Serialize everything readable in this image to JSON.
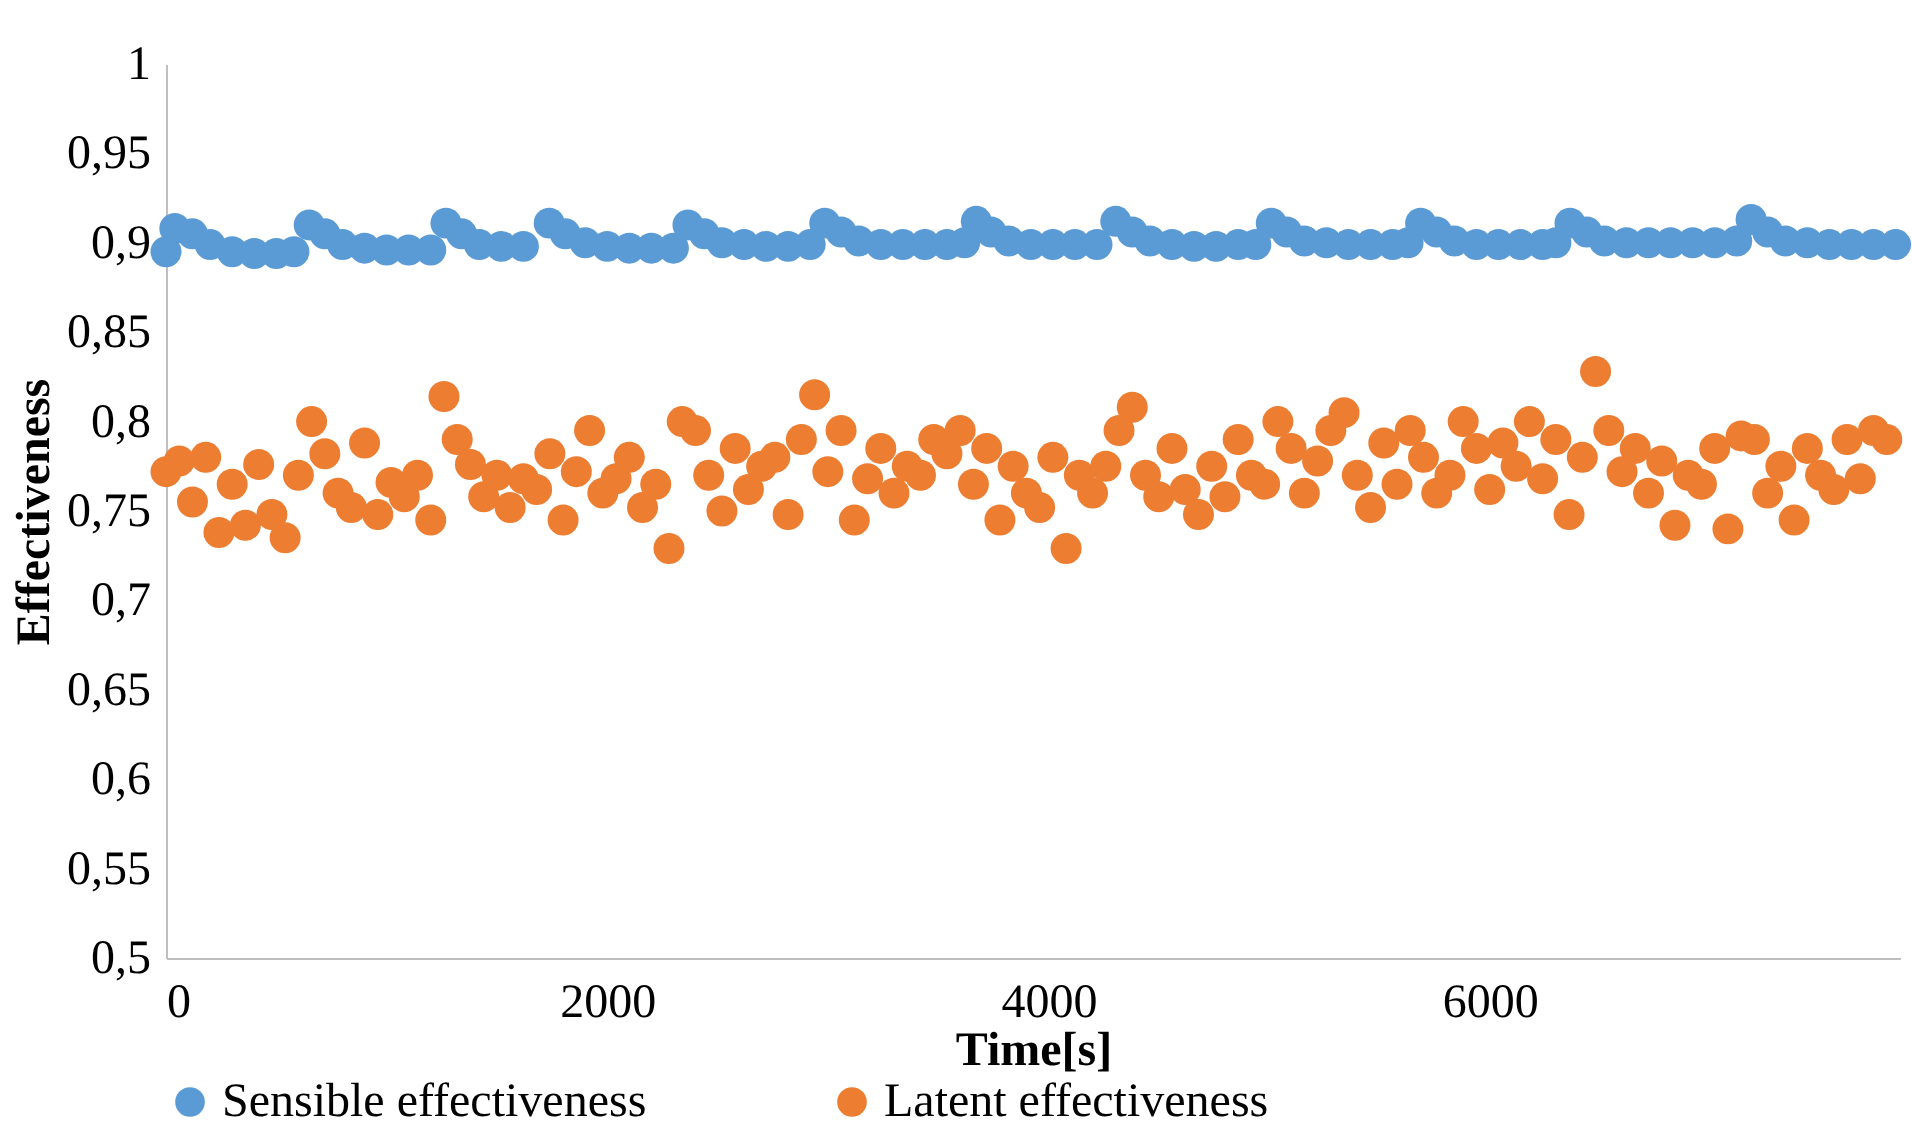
{
  "chart_data": {
    "type": "scatter",
    "xlabel": "Time[s]",
    "ylabel": "Effectiveness",
    "xlim": [
      0,
      7860
    ],
    "xticks": [
      0,
      2000,
      4000,
      6000
    ],
    "ylim": [
      0.5,
      1
    ],
    "yticks": [
      {
        "value": 0.5,
        "label": "0,5"
      },
      {
        "value": 0.55,
        "label": "0,55"
      },
      {
        "value": 0.6,
        "label": "0,6"
      },
      {
        "value": 0.65,
        "label": "0,65"
      },
      {
        "value": 0.7,
        "label": "0,7"
      },
      {
        "value": 0.75,
        "label": "0,75"
      },
      {
        "value": 0.8,
        "label": "0,8"
      },
      {
        "value": 0.85,
        "label": "0,85"
      },
      {
        "value": 0.9,
        "label": "0,9"
      },
      {
        "value": 0.95,
        "label": "0,95"
      },
      {
        "value": 1,
        "label": "1"
      }
    ],
    "grid": false,
    "legend": "bottom",
    "marker": "circle",
    "series": [
      {
        "name": "Sensible effectiveness",
        "color": "#5b9bd5",
        "x": [
          0,
          40,
          120,
          200,
          300,
          400,
          500,
          580,
          649,
          720,
          800,
          900,
          1000,
          1100,
          1200,
          1269,
          1340,
          1420,
          1520,
          1620,
          1737,
          1810,
          1900,
          2000,
          2100,
          2200,
          2300,
          2366,
          2440,
          2520,
          2620,
          2720,
          2820,
          2920,
          2986,
          3060,
          3140,
          3240,
          3340,
          3440,
          3540,
          3620,
          3673,
          3740,
          3820,
          3920,
          4020,
          4120,
          4220,
          4305,
          4380,
          4460,
          4560,
          4660,
          4760,
          4860,
          4940,
          5010,
          5080,
          5160,
          5260,
          5360,
          5460,
          5560,
          5630,
          5687,
          5760,
          5840,
          5940,
          6040,
          6140,
          6240,
          6300,
          6364,
          6440,
          6520,
          6620,
          6720,
          6820,
          6920,
          7020,
          7120,
          7185,
          7260,
          7340,
          7440,
          7540,
          7640,
          7740,
          7840
        ],
        "values": [
          0.895,
          0.908,
          0.905,
          0.899,
          0.895,
          0.894,
          0.894,
          0.895,
          0.91,
          0.905,
          0.899,
          0.897,
          0.896,
          0.896,
          0.896,
          0.911,
          0.905,
          0.899,
          0.898,
          0.898,
          0.911,
          0.905,
          0.9,
          0.898,
          0.897,
          0.897,
          0.897,
          0.91,
          0.905,
          0.9,
          0.899,
          0.898,
          0.898,
          0.899,
          0.911,
          0.906,
          0.901,
          0.899,
          0.899,
          0.899,
          0.899,
          0.9,
          0.912,
          0.906,
          0.901,
          0.899,
          0.899,
          0.899,
          0.899,
          0.912,
          0.906,
          0.901,
          0.899,
          0.898,
          0.898,
          0.899,
          0.899,
          0.911,
          0.906,
          0.901,
          0.9,
          0.899,
          0.899,
          0.899,
          0.9,
          0.911,
          0.906,
          0.901,
          0.899,
          0.899,
          0.899,
          0.899,
          0.9,
          0.911,
          0.906,
          0.901,
          0.9,
          0.9,
          0.9,
          0.9,
          0.9,
          0.901,
          0.913,
          0.906,
          0.901,
          0.9,
          0.899,
          0.899,
          0.899,
          0.899
        ]
      },
      {
        "name": "Latent effectiveness",
        "color": "#ed7d31",
        "x": [
          0,
          60,
          120,
          180,
          240,
          300,
          360,
          420,
          480,
          540,
          600,
          660,
          720,
          780,
          840,
          900,
          960,
          1020,
          1080,
          1140,
          1200,
          1260,
          1320,
          1380,
          1440,
          1500,
          1560,
          1620,
          1680,
          1740,
          1800,
          1860,
          1920,
          1980,
          2040,
          2100,
          2160,
          2220,
          2280,
          2340,
          2400,
          2460,
          2520,
          2580,
          2640,
          2700,
          2760,
          2820,
          2880,
          2940,
          3000,
          3060,
          3120,
          3180,
          3240,
          3300,
          3360,
          3420,
          3480,
          3540,
          3600,
          3660,
          3720,
          3780,
          3840,
          3900,
          3960,
          4020,
          4080,
          4140,
          4200,
          4260,
          4320,
          4380,
          4440,
          4500,
          4560,
          4620,
          4680,
          4740,
          4800,
          4860,
          4920,
          4980,
          5040,
          5100,
          5160,
          5220,
          5280,
          5340,
          5400,
          5460,
          5520,
          5580,
          5640,
          5700,
          5760,
          5820,
          5880,
          5940,
          6000,
          6060,
          6120,
          6180,
          6240,
          6300,
          6360,
          6420,
          6480,
          6540,
          6600,
          6660,
          6720,
          6780,
          6840,
          6900,
          6960,
          7020,
          7080,
          7140,
          7200,
          7260,
          7320,
          7380,
          7440,
          7500,
          7560,
          7620,
          7680,
          7740,
          7800
        ],
        "values": [
          0.772,
          0.778,
          0.755,
          0.78,
          0.738,
          0.765,
          0.742,
          0.776,
          0.748,
          0.735,
          0.77,
          0.8,
          0.782,
          0.76,
          0.752,
          0.788,
          0.748,
          0.766,
          0.758,
          0.77,
          0.745,
          0.814,
          0.79,
          0.776,
          0.758,
          0.77,
          0.752,
          0.768,
          0.762,
          0.782,
          0.745,
          0.772,
          0.795,
          0.76,
          0.768,
          0.78,
          0.752,
          0.765,
          0.729,
          0.8,
          0.795,
          0.77,
          0.75,
          0.785,
          0.762,
          0.775,
          0.78,
          0.748,
          0.79,
          0.815,
          0.772,
          0.795,
          0.745,
          0.768,
          0.785,
          0.76,
          0.775,
          0.77,
          0.79,
          0.782,
          0.795,
          0.765,
          0.785,
          0.745,
          0.775,
          0.76,
          0.752,
          0.78,
          0.729,
          0.77,
          0.76,
          0.775,
          0.795,
          0.808,
          0.77,
          0.758,
          0.785,
          0.762,
          0.748,
          0.775,
          0.758,
          0.79,
          0.77,
          0.765,
          0.8,
          0.785,
          0.76,
          0.778,
          0.795,
          0.805,
          0.77,
          0.752,
          0.788,
          0.765,
          0.795,
          0.78,
          0.76,
          0.77,
          0.8,
          0.785,
          0.762,
          0.788,
          0.775,
          0.8,
          0.768,
          0.79,
          0.748,
          0.78,
          0.828,
          0.795,
          0.772,
          0.785,
          0.76,
          0.778,
          0.742,
          0.77,
          0.765,
          0.785,
          0.74,
          0.792,
          0.79,
          0.76,
          0.775,
          0.745,
          0.785,
          0.77,
          0.762,
          0.79,
          0.768,
          0.795,
          0.79
        ]
      }
    ]
  }
}
